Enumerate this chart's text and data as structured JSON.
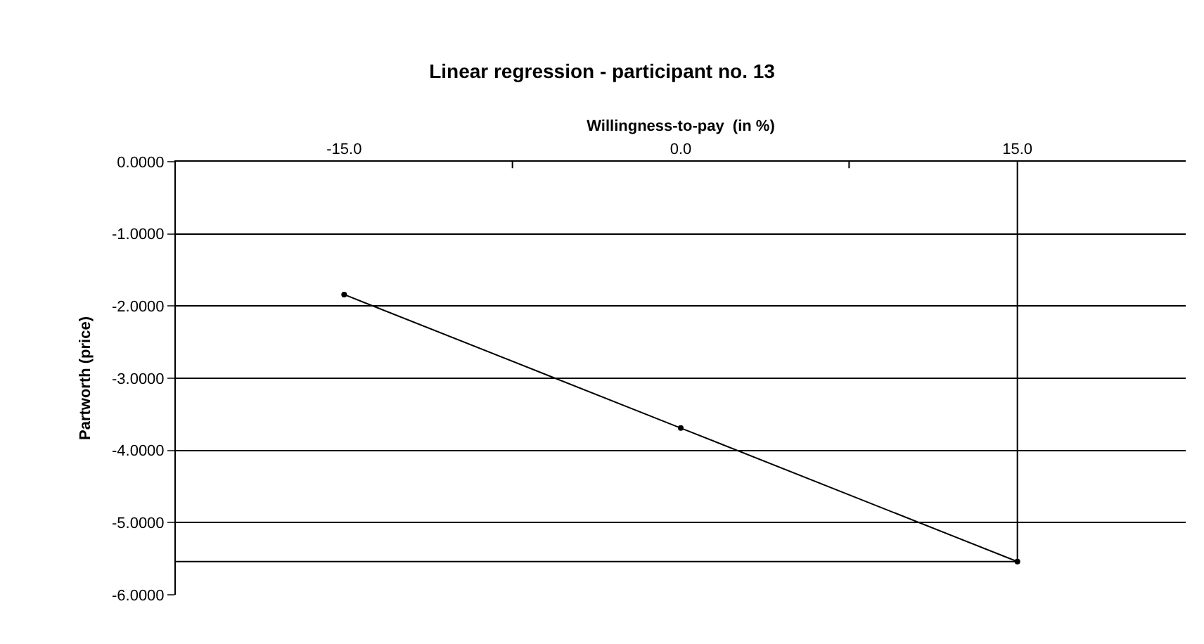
{
  "chart_data": {
    "type": "line",
    "title": "Linear regression - participant no. 13",
    "xlabel": "Willingness-to-pay  (in %)",
    "ylabel": "Partworth (price)",
    "categories": [
      "-15.0",
      "0.0",
      "15.0"
    ],
    "series": [
      {
        "color": "#000000",
        "values": [
          -1.84,
          -3.69,
          -5.54
        ]
      }
    ],
    "ylim": [
      -6,
      0
    ],
    "yticks": [
      {
        "value": 0,
        "label": "0.0000"
      },
      {
        "value": -1,
        "label": "-1.0000"
      },
      {
        "value": -2,
        "label": "-2.0000"
      },
      {
        "value": -3,
        "label": "-3.0000"
      },
      {
        "value": -4,
        "label": "-4.0000"
      },
      {
        "value": -5,
        "label": "-5.0000"
      },
      {
        "value": -6,
        "label": "-6.0000"
      }
    ],
    "grid": "y",
    "marker": "circle",
    "line_style": "solid",
    "legend": false,
    "ref_lines": [
      {
        "axis": "y",
        "value": -5.54,
        "color": "#000000"
      },
      {
        "axis": "x",
        "value": "15.0",
        "color": "#000000"
      }
    ]
  }
}
